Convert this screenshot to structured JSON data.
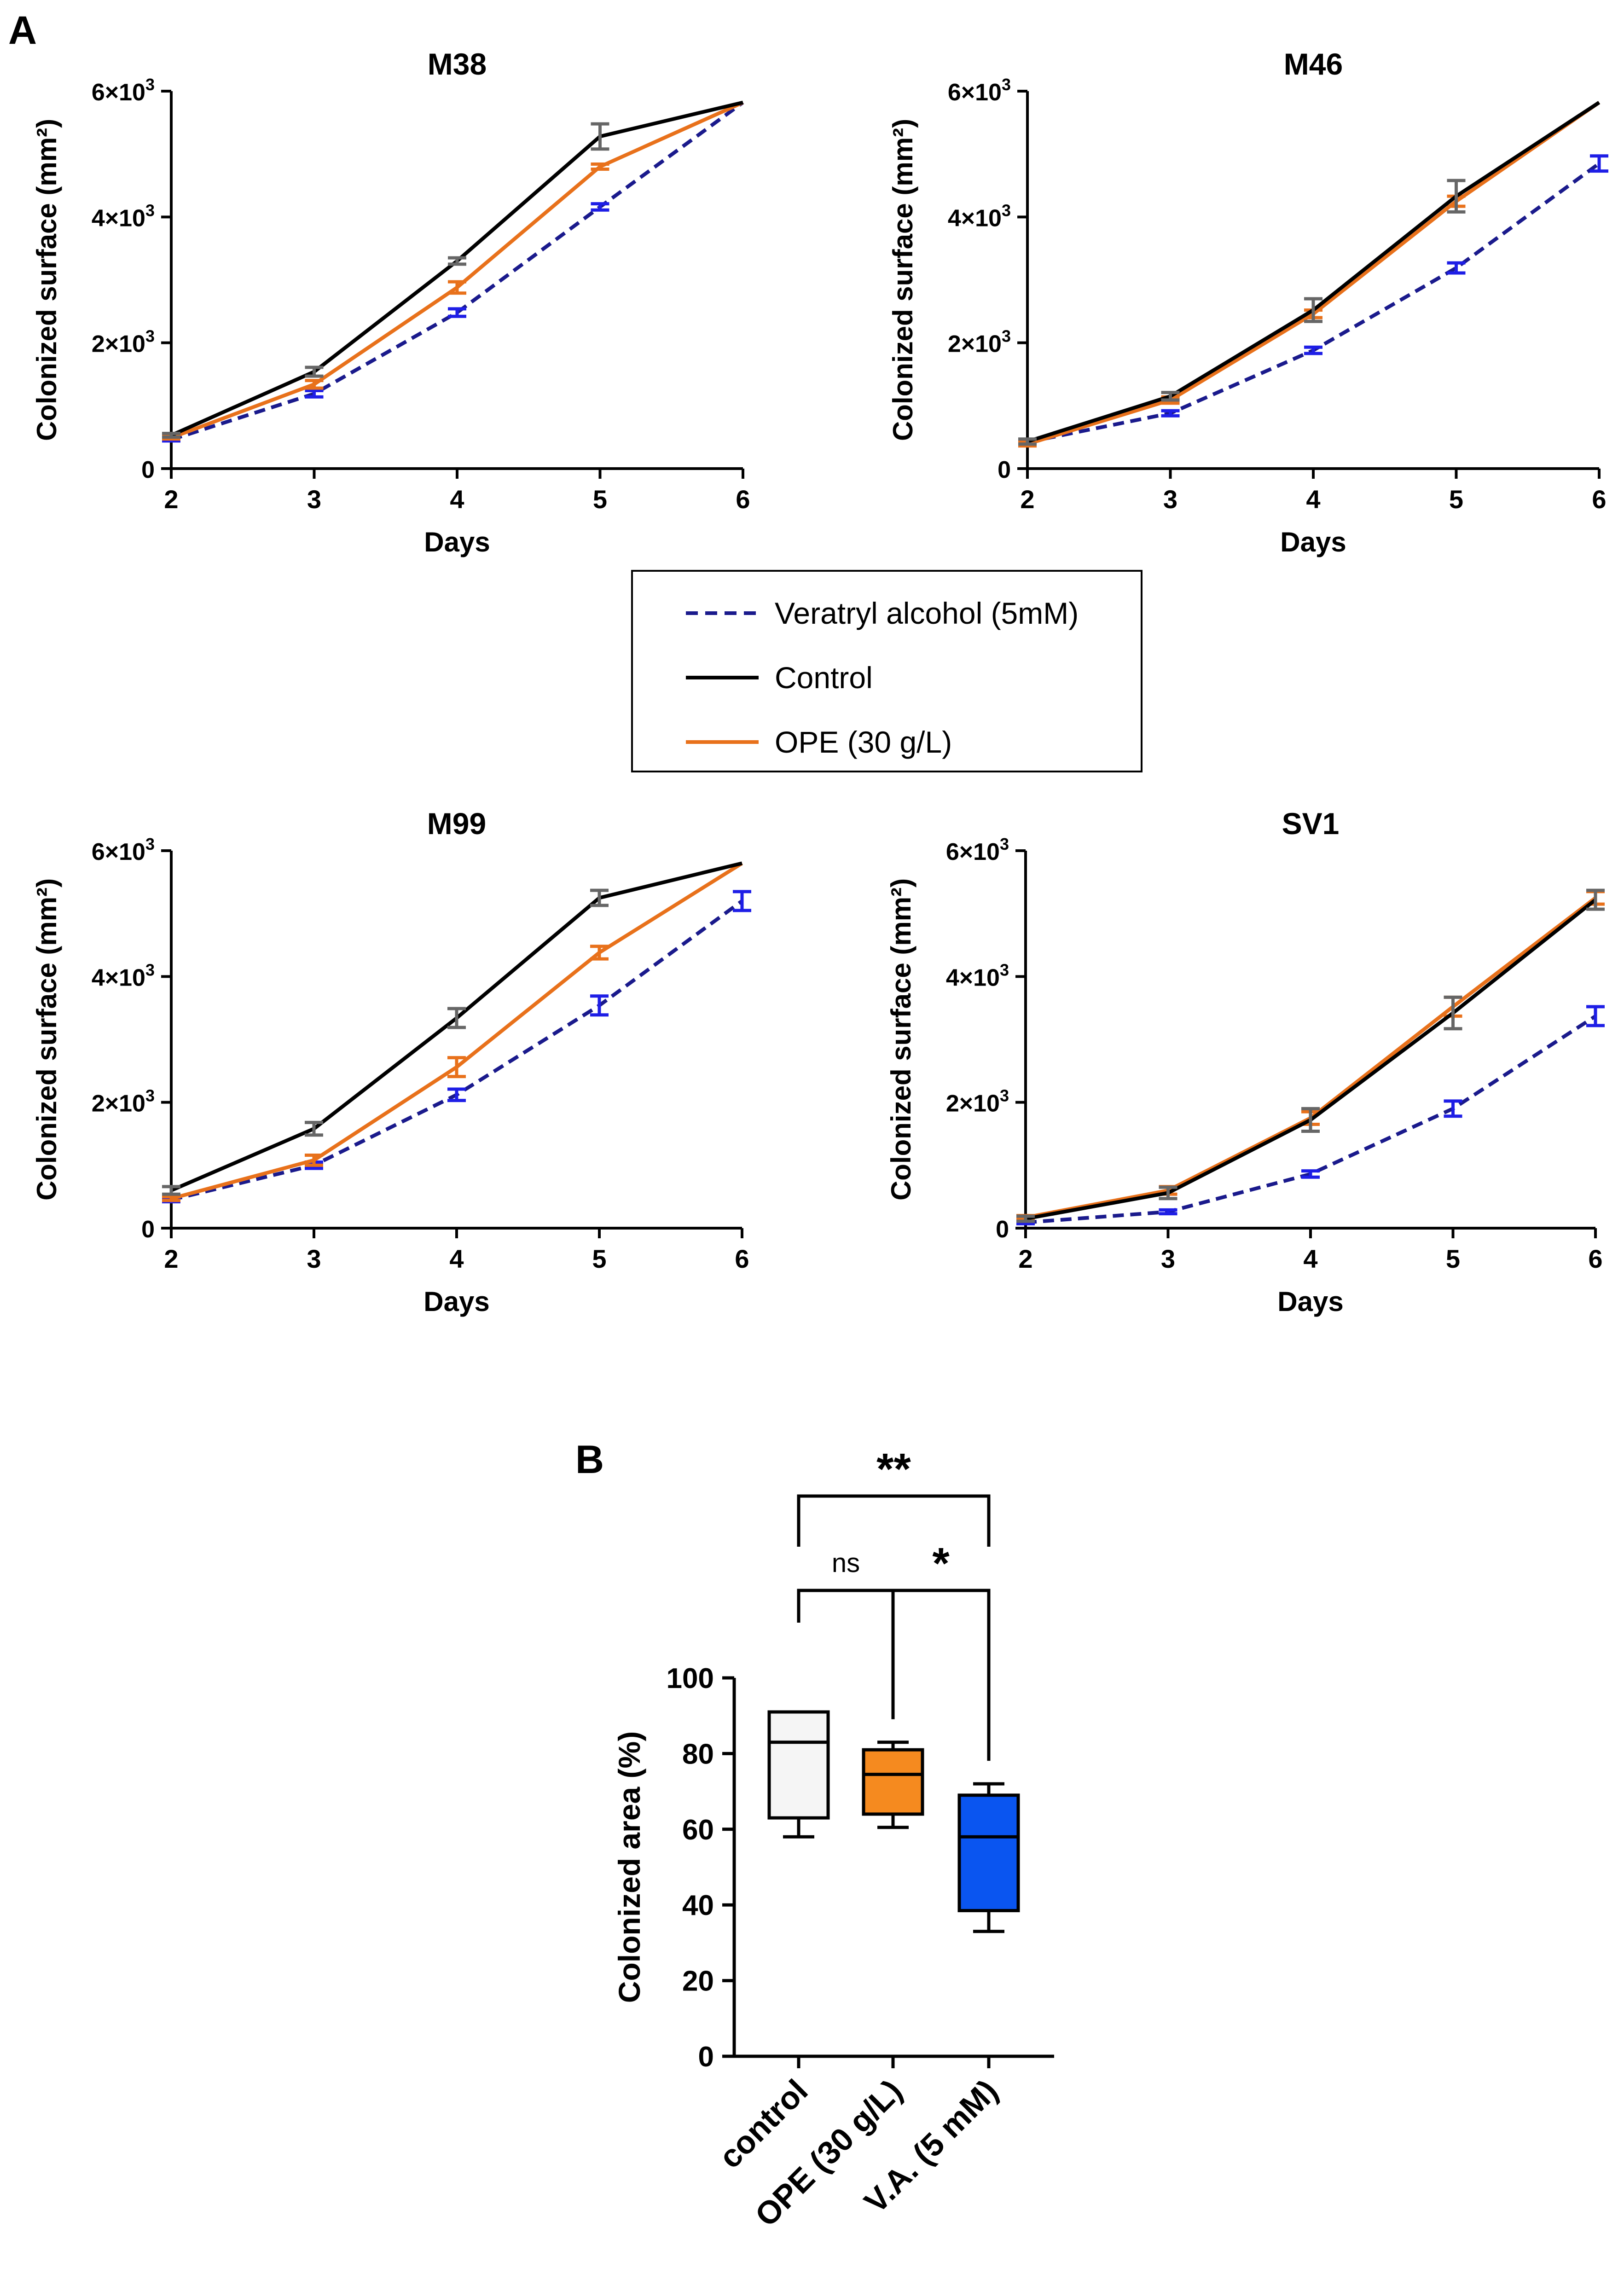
{
  "figure": {
    "panel_a_label": "A",
    "panel_b_label": "B",
    "colors": {
      "control": "#000000",
      "ope": "#E8711B",
      "va": "#1A1A8C",
      "va_err": "#1E1EE6",
      "grey_err": "#666666",
      "box_control": "#F5F5F5",
      "box_ope": "#F58A1F",
      "box_va": "#0A55F0"
    }
  },
  "legend": {
    "items": [
      {
        "label": "Veratryl alcohol (5mM)",
        "series": "va"
      },
      {
        "label": "Control",
        "series": "control"
      },
      {
        "label": "OPE (30 g/L)",
        "series": "ope"
      }
    ]
  },
  "chart_data": [
    {
      "type": "line",
      "title": "M38",
      "xlabel": "Days",
      "ylabel": "Colonized surface (mm²)",
      "x": [
        2,
        3,
        4,
        5,
        6
      ],
      "xlim": [
        2,
        6
      ],
      "ylim": [
        0,
        6000
      ],
      "ytick_labels": [
        {
          "base": "0",
          "exp": ""
        },
        {
          "base": "2×10",
          "exp": "3"
        },
        {
          "base": "4×10",
          "exp": "3"
        },
        {
          "base": "6×10",
          "exp": "3"
        }
      ],
      "yticks": [
        0,
        2000,
        4000,
        6000
      ],
      "xtick_labels": [
        "2",
        "3",
        "4",
        "5",
        "6"
      ],
      "series": [
        {
          "name": "Control",
          "key": "control",
          "values": [
            530,
            1540,
            3300,
            5280,
            5820
          ],
          "err": [
            30,
            70,
            50,
            200,
            0
          ]
        },
        {
          "name": "OPE (30 g/L)",
          "key": "ope",
          "values": [
            490,
            1340,
            2880,
            4800,
            5820
          ],
          "err": [
            20,
            60,
            90,
            40,
            0
          ]
        },
        {
          "name": "Veratryl alcohol (5mM)",
          "key": "va",
          "values": [
            460,
            1190,
            2480,
            4160,
            5820
          ],
          "err": [
            20,
            50,
            60,
            50,
            0
          ]
        }
      ]
    },
    {
      "type": "line",
      "title": "M46",
      "xlabel": "Days",
      "ylabel": "Colonized surface (mm²)",
      "x": [
        2,
        3,
        4,
        5,
        6
      ],
      "xlim": [
        2,
        6
      ],
      "ylim": [
        0,
        6000
      ],
      "ytick_labels": [
        {
          "base": "0",
          "exp": ""
        },
        {
          "base": "2×10",
          "exp": "3"
        },
        {
          "base": "4×10",
          "exp": "3"
        },
        {
          "base": "6×10",
          "exp": "3"
        }
      ],
      "yticks": [
        0,
        2000,
        4000,
        6000
      ],
      "xtick_labels": [
        "2",
        "3",
        "4",
        "5",
        "6"
      ],
      "series": [
        {
          "name": "Control",
          "key": "control",
          "values": [
            430,
            1150,
            2520,
            4330,
            5820
          ],
          "err": [
            40,
            60,
            180,
            250,
            0
          ]
        },
        {
          "name": "OPE (30 g/L)",
          "key": "ope",
          "values": [
            390,
            1090,
            2460,
            4250,
            5820
          ],
          "err": [
            30,
            50,
            60,
            80,
            0
          ]
        },
        {
          "name": "Veratryl alcohol (5mM)",
          "key": "va",
          "values": [
            420,
            880,
            1880,
            3190,
            4850
          ],
          "err": [
            20,
            40,
            50,
            80,
            120
          ]
        }
      ]
    },
    {
      "type": "line",
      "title": "M99",
      "xlabel": "Days",
      "ylabel": "Colonized surface (mm²)",
      "x": [
        2,
        3,
        4,
        5,
        6
      ],
      "xlim": [
        2,
        6
      ],
      "ylim": [
        0,
        6000
      ],
      "ytick_labels": [
        {
          "base": "0",
          "exp": ""
        },
        {
          "base": "2×10",
          "exp": "3"
        },
        {
          "base": "4×10",
          "exp": "3"
        },
        {
          "base": "6×10",
          "exp": "3"
        }
      ],
      "yticks": [
        0,
        2000,
        4000,
        6000
      ],
      "xtick_labels": [
        "2",
        "3",
        "4",
        "5",
        "6"
      ],
      "series": [
        {
          "name": "Control",
          "key": "control",
          "values": [
            600,
            1580,
            3340,
            5250,
            5800
          ],
          "err": [
            60,
            100,
            150,
            120,
            0
          ]
        },
        {
          "name": "OPE (30 g/L)",
          "key": "ope",
          "values": [
            470,
            1080,
            2560,
            4380,
            5800
          ],
          "err": [
            30,
            80,
            150,
            100,
            0
          ]
        },
        {
          "name": "Veratryl alcohol (5mM)",
          "key": "va",
          "values": [
            450,
            1000,
            2120,
            3540,
            5200
          ],
          "err": [
            30,
            50,
            90,
            150,
            150
          ]
        }
      ]
    },
    {
      "type": "line",
      "title": "SV1",
      "xlabel": "Days",
      "ylabel": "Colonized surface (mm²)",
      "x": [
        2,
        3,
        4,
        5,
        6
      ],
      "xlim": [
        2,
        6
      ],
      "ylim": [
        0,
        6000
      ],
      "ytick_labels": [
        {
          "base": "0",
          "exp": ""
        },
        {
          "base": "2×10",
          "exp": "3"
        },
        {
          "base": "4×10",
          "exp": "3"
        },
        {
          "base": "6×10",
          "exp": "3"
        }
      ],
      "yticks": [
        0,
        2000,
        4000,
        6000
      ],
      "xtick_labels": [
        "2",
        "3",
        "4",
        "5",
        "6"
      ],
      "series": [
        {
          "name": "Control",
          "key": "control",
          "values": [
            150,
            560,
            1720,
            3420,
            5220
          ],
          "err": [
            40,
            90,
            180,
            250,
            150
          ]
        },
        {
          "name": "OPE (30 g/L)",
          "key": "ope",
          "values": [
            170,
            600,
            1750,
            3520,
            5250
          ],
          "err": [
            30,
            60,
            100,
            150,
            100
          ]
        },
        {
          "name": "Veratryl alcohol (5mM)",
          "key": "va",
          "values": [
            90,
            260,
            860,
            1900,
            3370
          ],
          "err": [
            20,
            30,
            50,
            120,
            150
          ]
        }
      ]
    },
    {
      "type": "box",
      "ylabel": "Colonized area (%)",
      "ylim": [
        0,
        100
      ],
      "yticks": [
        0,
        20,
        40,
        60,
        80,
        100
      ],
      "ytick_labels": [
        "0",
        "20",
        "40",
        "60",
        "80",
        "100"
      ],
      "categories": [
        "control",
        "OPE (30 g/L)",
        "V.A. (5 mM)"
      ],
      "boxes": [
        {
          "category": "control",
          "key": "box_control",
          "min": 58,
          "q1": 63,
          "median": 83,
          "q3": 91,
          "max": 91
        },
        {
          "category": "OPE (30 g/L)",
          "key": "box_ope",
          "min": 60.5,
          "q1": 64,
          "median": 74.5,
          "q3": 81,
          "max": 83
        },
        {
          "category": "V.A. (5 mM)",
          "key": "box_va",
          "min": 33,
          "q1": 38.5,
          "median": 58,
          "q3": 69,
          "max": 72
        }
      ],
      "significance": [
        {
          "from": 0,
          "to": 2,
          "label": "**",
          "level": "top"
        },
        {
          "from": 0,
          "to": 1,
          "label": "ns",
          "level": "low"
        },
        {
          "from": 1,
          "to": 2,
          "label": "*",
          "level": "low"
        }
      ]
    }
  ]
}
